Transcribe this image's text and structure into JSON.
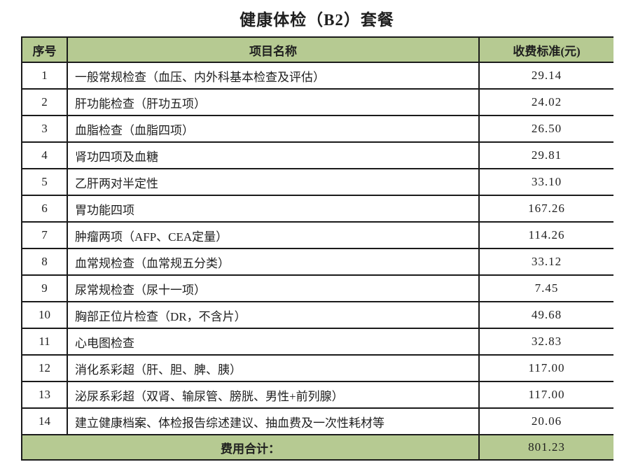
{
  "page": {
    "title": "健康体检（B2）套餐"
  },
  "table": {
    "headers": {
      "no": "序号",
      "item": "项目名称",
      "price": "收费标准(元)"
    },
    "rows": [
      {
        "no": "1",
        "item": "一般常规检查（血压、内外科基本检查及评估）",
        "price": "29.14"
      },
      {
        "no": "2",
        "item": "肝功能检查（肝功五项）",
        "price": "24.02"
      },
      {
        "no": "3",
        "item": "血脂检查（血脂四项）",
        "price": "26.50"
      },
      {
        "no": "4",
        "item": "肾功四项及血糖",
        "price": "29.81"
      },
      {
        "no": "5",
        "item": "乙肝两对半定性",
        "price": "33.10"
      },
      {
        "no": "6",
        "item": "胃功能四项",
        "price": "167.26"
      },
      {
        "no": "7",
        "item": "肿瘤两项（AFP、CEA定量）",
        "price": "114.26"
      },
      {
        "no": "8",
        "item": "血常规检查（血常规五分类）",
        "price": "33.12"
      },
      {
        "no": "9",
        "item": "尿常规检查（尿十一项）",
        "price": "7.45"
      },
      {
        "no": "10",
        "item": "胸部正位片检查（DR，不含片）",
        "price": "49.68"
      },
      {
        "no": "11",
        "item": "心电图检查",
        "price": "32.83"
      },
      {
        "no": "12",
        "item": "消化系彩超（肝、胆、脾、胰）",
        "price": "117.00"
      },
      {
        "no": "13",
        "item": "泌尿系彩超（双肾、输尿管、膀胱、男性+前列腺）",
        "price": "117.00"
      },
      {
        "no": "14",
        "item": "建立健康档案、体检报告综述建议、抽血费及一次性耗材等",
        "price": "20.06"
      }
    ],
    "footer": {
      "label": "费用合计：",
      "total": "801.23"
    }
  },
  "colors": {
    "header_bg": "#b6ca92",
    "border": "#1b1b1b",
    "text": "#1f1f1f",
    "background": "#ffffff"
  }
}
